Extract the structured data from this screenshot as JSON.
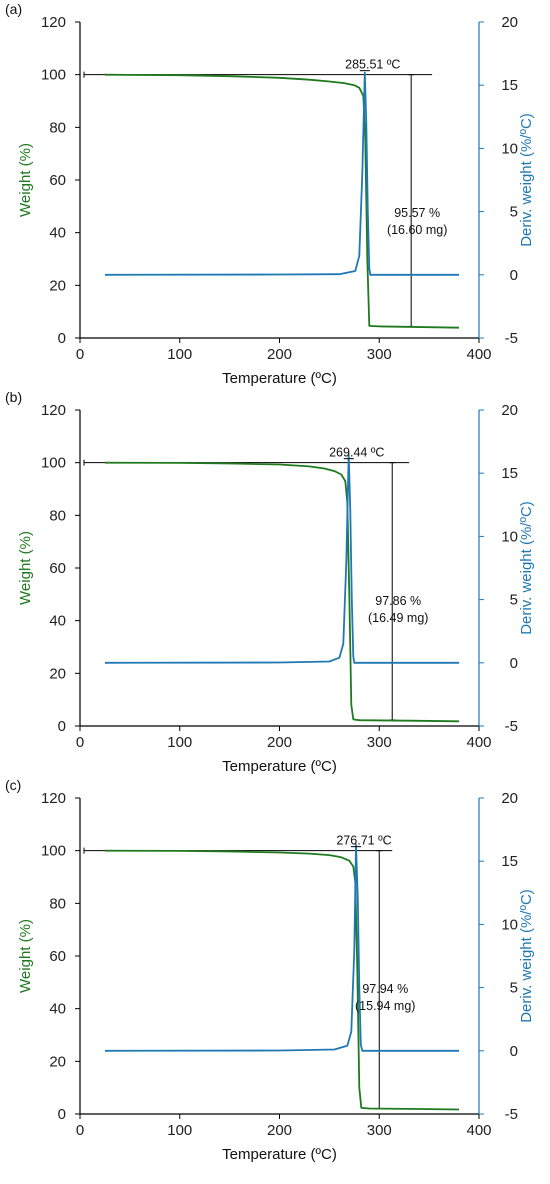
{
  "colors": {
    "weight": "#1f7a1f",
    "deriv": "#1f78b4",
    "annotation": "#000000"
  },
  "chart_data": [
    {
      "type": "line",
      "panel_label": "(a)",
      "xlabel": "Temperature (ºC)",
      "ylabel": "Weight (%)",
      "y2label": "Deriv. weight (%/ºC)",
      "xlim": [
        0,
        400
      ],
      "ylim": [
        0,
        120
      ],
      "y2lim": [
        -5,
        20
      ],
      "xticks": [
        "0",
        "100",
        "200",
        "300",
        "400"
      ],
      "yticks": [
        "0",
        "20",
        "40",
        "60",
        "80",
        "100",
        "120"
      ],
      "y2ticks": [
        "-5",
        "0",
        "5",
        "10",
        "15",
        "20"
      ],
      "grid": false,
      "peak_label": "285.51 ºC",
      "loss_label": "95.57 %",
      "loss_mass_label": "(16.60 mg)",
      "annotations": {
        "hline_y": 100,
        "hline_x": [
          4,
          353
        ],
        "vline_x": 332,
        "vline_y": [
          4.4,
          100
        ],
        "peak_temp": 285.51
      },
      "series": [
        {
          "axis": "left",
          "x": [
            25,
            100,
            150,
            200,
            230,
            250,
            265,
            275,
            280,
            284,
            286,
            288,
            290,
            300,
            350,
            380
          ],
          "y": [
            100,
            99.8,
            99.4,
            98.8,
            98.1,
            97.4,
            96.8,
            96.0,
            95.0,
            92.0,
            75.0,
            30.0,
            4.6,
            4.4,
            4.1,
            3.9
          ]
        },
        {
          "axis": "right",
          "x": [
            25,
            200,
            260,
            276,
            280,
            283,
            285.5,
            287,
            288.5,
            290,
            291,
            300,
            380
          ],
          "y": [
            0,
            0.02,
            0.05,
            0.3,
            1.5,
            8.0,
            16.0,
            12.0,
            5.0,
            0.5,
            0,
            0,
            0
          ]
        }
      ]
    },
    {
      "type": "line",
      "panel_label": "(b)",
      "xlabel": "Temperature (ºC)",
      "ylabel": "Weight (%)",
      "y2label": "Deriv. weight (%/ºC)",
      "xlim": [
        0,
        400
      ],
      "ylim": [
        0,
        120
      ],
      "y2lim": [
        -5,
        20
      ],
      "xticks": [
        "0",
        "100",
        "200",
        "300",
        "400"
      ],
      "yticks": [
        "0",
        "20",
        "40",
        "60",
        "80",
        "100",
        "120"
      ],
      "y2ticks": [
        "-5",
        "0",
        "5",
        "10",
        "15",
        "20"
      ],
      "grid": false,
      "peak_label": "269.44 ºC",
      "loss_label": "97.86 %",
      "loss_mass_label": "(16.49 mg)",
      "annotations": {
        "hline_y": 100,
        "hline_x": [
          4,
          330
        ],
        "vline_x": 313,
        "vline_y": [
          2.3,
          100
        ],
        "peak_temp": 269.44
      },
      "series": [
        {
          "axis": "left",
          "x": [
            25,
            100,
            150,
            200,
            230,
            245,
            255,
            262,
            266,
            268,
            270,
            272,
            274,
            280,
            330,
            380
          ],
          "y": [
            100,
            99.9,
            99.7,
            99.3,
            98.6,
            97.8,
            96.8,
            95.5,
            93.0,
            85.0,
            50.0,
            8.0,
            2.5,
            2.2,
            2.0,
            1.8
          ]
        },
        {
          "axis": "right",
          "x": [
            25,
            200,
            250,
            260,
            264,
            267,
            269.4,
            271,
            272.5,
            274,
            275,
            300,
            380
          ],
          "y": [
            0,
            0.02,
            0.1,
            0.4,
            1.5,
            8.0,
            16.5,
            12.0,
            5.0,
            0.5,
            0,
            0,
            0
          ]
        }
      ]
    },
    {
      "type": "line",
      "panel_label": "(c)",
      "xlabel": "Temperature (ºC)",
      "ylabel": "Weight (%)",
      "y2label": "Deriv. weight (%/ºC)",
      "xlim": [
        0,
        400
      ],
      "ylim": [
        0,
        120
      ],
      "y2lim": [
        -5,
        20
      ],
      "xticks": [
        "0",
        "100",
        "200",
        "300",
        "400"
      ],
      "yticks": [
        "0",
        "20",
        "40",
        "60",
        "80",
        "100",
        "120"
      ],
      "y2ticks": [
        "-5",
        "0",
        "5",
        "10",
        "15",
        "20"
      ],
      "grid": false,
      "peak_label": "276.71 ºC",
      "loss_label": "97.94 %",
      "loss_mass_label": "(15.94 mg)",
      "annotations": {
        "hline_y": 100,
        "hline_x": [
          4,
          313
        ],
        "vline_x": 300,
        "vline_y": [
          2.0,
          100
        ],
        "peak_temp": 276.71
      },
      "series": [
        {
          "axis": "left",
          "x": [
            25,
            100,
            150,
            200,
            230,
            250,
            262,
            270,
            274,
            276,
            278,
            280,
            282,
            290,
            340,
            380
          ],
          "y": [
            100,
            99.9,
            99.7,
            99.3,
            98.9,
            98.3,
            97.5,
            96.2,
            94.0,
            88.0,
            55.0,
            10.0,
            2.3,
            2.1,
            1.9,
            1.7
          ]
        },
        {
          "axis": "right",
          "x": [
            25,
            200,
            255,
            268,
            272,
            275,
            276.7,
            278.5,
            280,
            281.5,
            283,
            300,
            380
          ],
          "y": [
            0,
            0.02,
            0.1,
            0.4,
            1.5,
            8.0,
            16.3,
            12.0,
            5.0,
            0.5,
            0,
            0,
            0
          ]
        }
      ]
    }
  ]
}
